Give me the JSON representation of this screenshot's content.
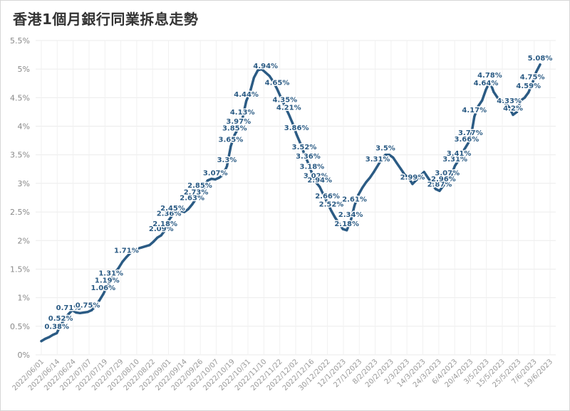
{
  "chart_data": {
    "type": "line",
    "title": "香港1個月銀行同業拆息走勢",
    "xlabel": "",
    "ylabel": "",
    "ylim": [
      0,
      5.5
    ],
    "yticks": [
      "0%",
      "0.5%",
      "1%",
      "1.5%",
      "2%",
      "2.5%",
      "3%",
      "3.5%",
      "4%",
      "4.5%",
      "5%",
      "5.5%"
    ],
    "grid": true,
    "color": "#2b5b84",
    "x_tick_labels": [
      "2022/06/01",
      "2022/06/14",
      "2022/06/24",
      "2022/07/07",
      "2022/07/19",
      "2022/07/29",
      "2022/08/10",
      "2022/08/22",
      "2022/09/01",
      "2022/09/14",
      "2022/09/26",
      "2022/10/07",
      "2022/10/19",
      "2022/10/31",
      "2022/11/10",
      "2022/11/22",
      "2022/12/02",
      "2022/12/16",
      "30/12/2022",
      "12/1/2023",
      "27/1/2023",
      "8/2/2023",
      "20/2/2023",
      "2/3/2023",
      "14/3/2023",
      "24/3/2023",
      "6/4/2023",
      "20/4/2023",
      "3/5/2023",
      "15/5/2023",
      "25/5/2023",
      "7/6/2023",
      "19/6/2023"
    ],
    "series": [
      {
        "values": [
          0.24,
          0.28,
          0.31,
          0.35,
          0.38,
          0.52,
          0.62,
          0.71,
          0.78,
          0.74,
          0.73,
          0.74,
          0.75,
          0.78,
          0.85,
          0.95,
          1.06,
          1.19,
          1.31,
          1.43,
          1.52,
          1.63,
          1.71,
          1.78,
          1.82,
          1.86,
          1.88,
          1.9,
          1.92,
          1.98,
          2.05,
          2.09,
          2.18,
          2.36,
          2.45,
          2.5,
          2.52,
          2.5,
          2.55,
          2.63,
          2.73,
          2.85,
          2.92,
          3.05,
          3.08,
          3.07,
          3.1,
          3.15,
          3.3,
          3.65,
          3.85,
          3.97,
          4.13,
          4.44,
          4.6,
          4.85,
          4.98,
          5.0,
          4.94,
          4.88,
          4.78,
          4.65,
          4.5,
          4.35,
          4.21,
          4.05,
          3.86,
          3.7,
          3.52,
          3.36,
          3.18,
          3.02,
          2.94,
          2.8,
          2.66,
          2.52,
          2.4,
          2.3,
          2.2,
          2.18,
          2.34,
          2.61,
          2.8,
          2.92,
          3.02,
          3.1,
          3.2,
          3.31,
          3.42,
          3.5,
          3.5,
          3.45,
          3.35,
          3.25,
          3.15,
          3.1,
          2.99,
          3.06,
          3.13,
          3.2,
          3.1,
          3.0,
          2.9,
          2.87,
          2.96,
          3.07,
          3.14,
          3.31,
          3.41,
          3.55,
          3.66,
          3.77,
          4.17,
          4.35,
          4.45,
          4.64,
          4.78,
          4.6,
          4.5,
          4.45,
          4.4,
          4.33,
          4.2,
          4.25,
          4.45,
          4.5,
          4.59,
          4.75,
          4.95,
          5.08
        ],
        "labels": {
          "4": "0.38%",
          "5": "0.52%",
          "7": "0.71%",
          "12": "0.75%",
          "16": "1.06%",
          "17": "1.19%",
          "18": "1.31%",
          "22": "1.71%",
          "31": "2.09%",
          "32": "2.18%",
          "33": "2.36%",
          "34": "2.45%",
          "39": "2.63%",
          "40": "2.73%",
          "41": "2.85%",
          "45": "3.07%",
          "48": "3.3%",
          "49": "3.65%",
          "50": "3.85%",
          "51": "3.97%",
          "52": "4.13%",
          "53": "4.44%",
          "58": "4.94%",
          "61": "4.65%",
          "63": "4.35%",
          "64": "4.21%",
          "66": "3.86%",
          "68": "3.52%",
          "69": "3.36%",
          "70": "3.18%",
          "71": "3.02%",
          "72": "2.94%",
          "74": "2.66%",
          "75": "2.52%",
          "79": "2.18%",
          "80": "2.34%",
          "81": "2.61%",
          "87": "3.31%",
          "89": "3.5%",
          "96": "2.99%",
          "103": "2.87%",
          "104": "2.96%",
          "105": "3.07%",
          "107": "3.31%",
          "108": "3.41%",
          "110": "3.66%",
          "111": "3.77%",
          "112": "4.17%",
          "115": "4.64%",
          "116": "4.78%",
          "121": "4.33%",
          "122": "4.2%",
          "126": "4.59%",
          "127": "4.75%",
          "129": "5.08%"
        }
      }
    ]
  }
}
